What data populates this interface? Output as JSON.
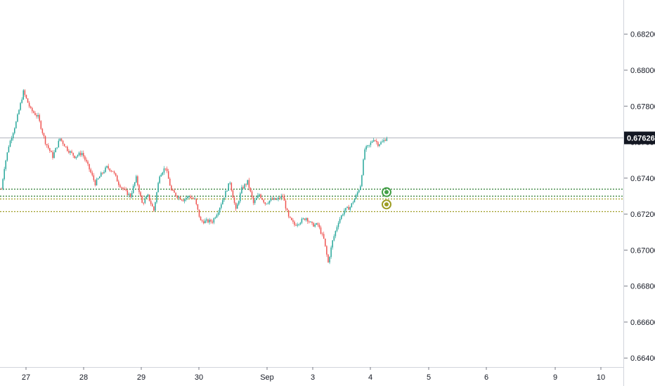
{
  "chart_data": {
    "type": "candlestick",
    "y_axis": {
      "ticks": [
        "0.66400",
        "0.66600",
        "0.66800",
        "0.67000",
        "0.67200",
        "0.67400",
        "0.67600",
        "0.67800",
        "0.68000",
        "0.68200"
      ],
      "ylim": [
        0.6635,
        0.6839
      ],
      "position": "right"
    },
    "x_axis": {
      "labels": [
        "27",
        "28",
        "29",
        "30",
        "Sep",
        "3",
        "4",
        "5",
        "6",
        "9",
        "10"
      ]
    },
    "last_price": {
      "value": 0.67626,
      "label": "0.67626"
    },
    "horizontal_levels": [
      {
        "value": 0.6734,
        "color": "#2e7d32"
      },
      {
        "value": 0.673,
        "color": "#2e7d32"
      },
      {
        "value": 0.67288,
        "color": "#9e9d24"
      },
      {
        "value": 0.67215,
        "color": "#9e9d24"
      }
    ],
    "markers": [
      {
        "value": 0.67322,
        "color": "#43a047"
      },
      {
        "value": 0.67254,
        "color": "#9e9d24"
      }
    ],
    "colors": {
      "up": "#26a69a",
      "down": "#ef5350",
      "axis_bg": "#131722",
      "grid": "#f0f3fa"
    },
    "grid": false,
    "series": [
      {
        "name": "",
        "anchors": [
          [
            0,
            0.6734
          ],
          [
            2,
            0.6746
          ],
          [
            5,
            0.6758
          ],
          [
            10,
            0.6771
          ],
          [
            15,
            0.6788
          ],
          [
            20,
            0.6778
          ],
          [
            25,
            0.6774
          ],
          [
            30,
            0.676
          ],
          [
            35,
            0.6752
          ],
          [
            40,
            0.6762
          ],
          [
            45,
            0.6756
          ],
          [
            50,
            0.6752
          ],
          [
            55,
            0.6754
          ],
          [
            60,
            0.6745
          ],
          [
            64,
            0.6737
          ],
          [
            68,
            0.6742
          ],
          [
            72,
            0.6746
          ],
          [
            76,
            0.6744
          ],
          [
            80,
            0.6737
          ],
          [
            84,
            0.6733
          ],
          [
            88,
            0.673
          ],
          [
            92,
            0.674
          ],
          [
            96,
            0.6726
          ],
          [
            100,
            0.673
          ],
          [
            104,
            0.6722
          ],
          [
            108,
            0.6742
          ],
          [
            112,
            0.6746
          ],
          [
            116,
            0.6733
          ],
          [
            120,
            0.673
          ],
          [
            124,
            0.6728
          ],
          [
            128,
            0.673
          ],
          [
            132,
            0.6728
          ],
          [
            136,
            0.6716
          ],
          [
            140,
            0.6716
          ],
          [
            144,
            0.6716
          ],
          [
            148,
            0.6722
          ],
          [
            152,
            0.673
          ],
          [
            156,
            0.6738
          ],
          [
            160,
            0.6722
          ],
          [
            164,
            0.6734
          ],
          [
            168,
            0.6738
          ],
          [
            172,
            0.6726
          ],
          [
            176,
            0.6731
          ],
          [
            180,
            0.6726
          ],
          [
            184,
            0.6728
          ],
          [
            188,
            0.6728
          ],
          [
            192,
            0.673
          ],
          [
            196,
            0.6718
          ],
          [
            200,
            0.6714
          ],
          [
            204,
            0.6716
          ],
          [
            208,
            0.6718
          ],
          [
            212,
            0.6714
          ],
          [
            216,
            0.6714
          ],
          [
            220,
            0.6706
          ],
          [
            223,
            0.6693
          ],
          [
            226,
            0.6705
          ],
          [
            230,
            0.6716
          ],
          [
            234,
            0.6722
          ],
          [
            238,
            0.6724
          ],
          [
            242,
            0.673
          ],
          [
            245,
            0.6736
          ],
          [
            248,
            0.6756
          ],
          [
            251,
            0.6758
          ],
          [
            254,
            0.6762
          ],
          [
            257,
            0.6759
          ],
          [
            260,
            0.676
          ],
          [
            263,
            0.67626
          ]
        ]
      }
    ]
  }
}
